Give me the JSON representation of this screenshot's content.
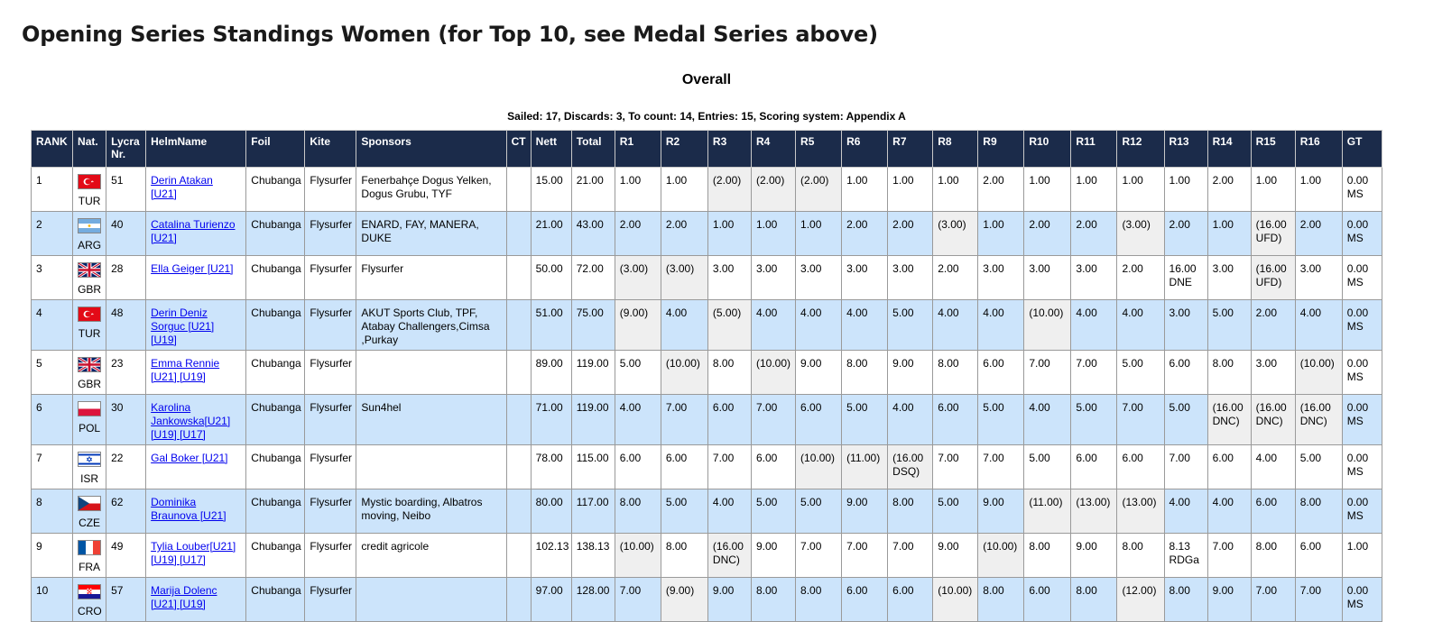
{
  "page": {
    "title": "Opening Series Standings Women (for Top 10, see Medal Series above)",
    "subtitle": "Overall",
    "info": "Sailed: 17, Discards: 3, To count: 14, Entries: 15, Scoring system: Appendix A"
  },
  "colors": {
    "header_bg": "#1b2b4a",
    "row_alt": "#cce4fb",
    "discard_bg": "#efefef",
    "link": "#0000ee"
  },
  "table": {
    "headers": [
      "RANK",
      "Nat.",
      "Lycra Nr.",
      "HelmName",
      "Foil",
      "Kite",
      "Sponsors",
      "CT",
      "Nett",
      "Total",
      "R1",
      "R2",
      "R3",
      "R4",
      "R5",
      "R6",
      "R7",
      "R8",
      "R9",
      "R10",
      "R11",
      "R12",
      "R13",
      "R14",
      "R15",
      "R16",
      "GT"
    ],
    "rows": [
      {
        "rank": "1",
        "nat": "TUR",
        "flag": "tur-flag-icon",
        "lycra": "51",
        "helm": "Derin Atakan [U21]",
        "foil": "Chubanga",
        "kite": "Flysurfer",
        "sponsors": "Fenerbahçe Dogus Yelken, Dogus Grubu, TYF",
        "ct": "",
        "nett": "15.00",
        "total": "21.00",
        "races": [
          "1.00",
          "1.00",
          "(2.00)",
          "(2.00)",
          "(2.00)",
          "1.00",
          "1.00",
          "1.00",
          "2.00",
          "1.00",
          "1.00",
          "1.00",
          "1.00",
          "2.00",
          "1.00",
          "1.00"
        ],
        "gt": "0.00 MS"
      },
      {
        "rank": "2",
        "nat": "ARG",
        "flag": "arg-flag-icon",
        "lycra": "40",
        "helm": "Catalina Turienzo [U21]",
        "foil": "Chubanga",
        "kite": "Flysurfer",
        "sponsors": "ENARD, FAY, MANERA, DUKE",
        "ct": "",
        "nett": "21.00",
        "total": "43.00",
        "races": [
          "2.00",
          "2.00",
          "1.00",
          "1.00",
          "1.00",
          "2.00",
          "2.00",
          "(3.00)",
          "1.00",
          "2.00",
          "2.00",
          "(3.00)",
          "2.00",
          "1.00",
          "(16.00 UFD)",
          "2.00"
        ],
        "gt": "0.00 MS"
      },
      {
        "rank": "3",
        "nat": "GBR",
        "flag": "gbr-flag-icon",
        "lycra": "28",
        "helm": "Ella Geiger [U21]",
        "foil": "Chubanga",
        "kite": "Flysurfer",
        "sponsors": "Flysurfer",
        "ct": "",
        "nett": "50.00",
        "total": "72.00",
        "races": [
          "(3.00)",
          "(3.00)",
          "3.00",
          "3.00",
          "3.00",
          "3.00",
          "3.00",
          "2.00",
          "3.00",
          "3.00",
          "3.00",
          "2.00",
          "16.00 DNE",
          "3.00",
          "(16.00 UFD)",
          "3.00"
        ],
        "gt": "0.00 MS"
      },
      {
        "rank": "4",
        "nat": "TUR",
        "flag": "tur-flag-icon",
        "lycra": "48",
        "helm": "Derin Deniz Sorguc [U21] [U19]",
        "foil": "Chubanga",
        "kite": "Flysurfer",
        "sponsors": "AKUT Sports Club, TPF, Atabay Challengers,Cimsa ,Purkay",
        "ct": "",
        "nett": "51.00",
        "total": "75.00",
        "races": [
          "(9.00)",
          "4.00",
          "(5.00)",
          "4.00",
          "4.00",
          "4.00",
          "5.00",
          "4.00",
          "4.00",
          "(10.00)",
          "4.00",
          "4.00",
          "3.00",
          "5.00",
          "2.00",
          "4.00"
        ],
        "gt": "0.00 MS"
      },
      {
        "rank": "5",
        "nat": "GBR",
        "flag": "gbr-flag-icon",
        "lycra": "23",
        "helm": "Emma Rennie [U21] [U19]",
        "foil": "Chubanga",
        "kite": "Flysurfer",
        "sponsors": "",
        "ct": "",
        "nett": "89.00",
        "total": "119.00",
        "races": [
          "5.00",
          "(10.00)",
          "8.00",
          "(10.00)",
          "9.00",
          "8.00",
          "9.00",
          "8.00",
          "6.00",
          "7.00",
          "7.00",
          "5.00",
          "6.00",
          "8.00",
          "3.00",
          "(10.00)"
        ],
        "gt": "0.00 MS"
      },
      {
        "rank": "6",
        "nat": "POL",
        "flag": "pol-flag-icon",
        "lycra": "30",
        "helm": "Karolina Jankowska[U21] [U19] [U17]",
        "foil": "Chubanga",
        "kite": "Flysurfer",
        "sponsors": "Sun4hel",
        "ct": "",
        "nett": "71.00",
        "total": "119.00",
        "races": [
          "4.00",
          "7.00",
          "6.00",
          "7.00",
          "6.00",
          "5.00",
          "4.00",
          "6.00",
          "5.00",
          "4.00",
          "5.00",
          "7.00",
          "5.00",
          "(16.00 DNC)",
          "(16.00 DNC)",
          "(16.00 DNC)"
        ],
        "gt": "0.00 MS"
      },
      {
        "rank": "7",
        "nat": "ISR",
        "flag": "isr-flag-icon",
        "lycra": "22",
        "helm": "Gal Boker [U21]",
        "foil": "Chubanga",
        "kite": "Flysurfer",
        "sponsors": "",
        "ct": "",
        "nett": "78.00",
        "total": "115.00",
        "races": [
          "6.00",
          "6.00",
          "7.00",
          "6.00",
          "(10.00)",
          "(11.00)",
          "(16.00 DSQ)",
          "7.00",
          "7.00",
          "5.00",
          "6.00",
          "6.00",
          "7.00",
          "6.00",
          "4.00",
          "5.00"
        ],
        "gt": "0.00 MS"
      },
      {
        "rank": "8",
        "nat": "CZE",
        "flag": "cze-flag-icon",
        "lycra": "62",
        "helm": "Dominika Braunova [U21]",
        "foil": "Chubanga",
        "kite": "Flysurfer",
        "sponsors": "Mystic boarding, Albatros moving, Neibo",
        "ct": "",
        "nett": "80.00",
        "total": "117.00",
        "races": [
          "8.00",
          "5.00",
          "4.00",
          "5.00",
          "5.00",
          "9.00",
          "8.00",
          "5.00",
          "9.00",
          "(11.00)",
          "(13.00)",
          "(13.00)",
          "4.00",
          "4.00",
          "6.00",
          "8.00"
        ],
        "gt": "0.00 MS"
      },
      {
        "rank": "9",
        "nat": "FRA",
        "flag": "fra-flag-icon",
        "lycra": "49",
        "helm": "Tylia Louber[U21] [U19] [U17]",
        "foil": "Chubanga",
        "kite": "Flysurfer",
        "sponsors": "credit agricole",
        "ct": "",
        "nett": "102.13",
        "total": "138.13",
        "races": [
          "(10.00)",
          "8.00",
          "(16.00 DNC)",
          "9.00",
          "7.00",
          "7.00",
          "7.00",
          "9.00",
          "(10.00)",
          "8.00",
          "9.00",
          "8.00",
          "8.13 RDGa",
          "7.00",
          "8.00",
          "6.00"
        ],
        "gt": "1.00"
      },
      {
        "rank": "10",
        "nat": "CRO",
        "flag": "cro-flag-icon",
        "lycra": "57",
        "helm": "Marija Dolenc [U21] [U19]",
        "foil": "Chubanga",
        "kite": "Flysurfer",
        "sponsors": "",
        "ct": "",
        "nett": "97.00",
        "total": "128.00",
        "races": [
          "7.00",
          "(9.00)",
          "9.00",
          "8.00",
          "8.00",
          "6.00",
          "6.00",
          "(10.00)",
          "8.00",
          "6.00",
          "8.00",
          "(12.00)",
          "8.00",
          "9.00",
          "7.00",
          "7.00"
        ],
        "gt": "0.00 MS"
      }
    ]
  }
}
